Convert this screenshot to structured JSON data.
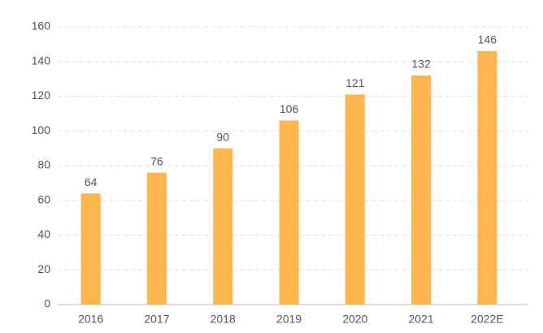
{
  "chart_data": {
    "type": "bar",
    "categories": [
      "2016",
      "2017",
      "2018",
      "2019",
      "2020",
      "2021",
      "2022E"
    ],
    "values": [
      64,
      76,
      90,
      106,
      121,
      132,
      146
    ],
    "color": "#fdb54e",
    "ylim": [
      0,
      160
    ],
    "yticks": [
      0,
      20,
      40,
      60,
      80,
      100,
      120,
      140,
      160
    ],
    "grid": true
  }
}
